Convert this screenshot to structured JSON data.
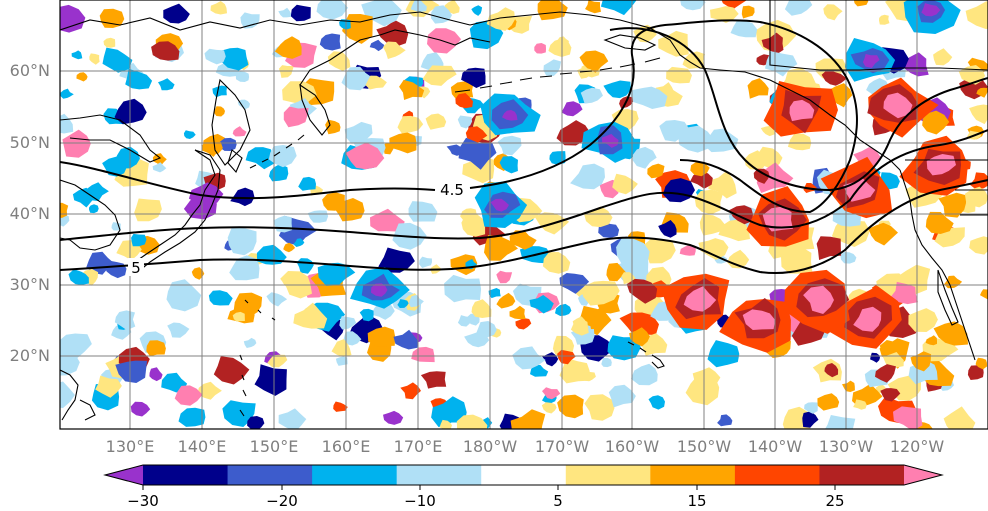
{
  "map": {
    "lat_labels": [
      "60°N",
      "50°N",
      "40°N",
      "30°N",
      "20°N"
    ],
    "lon_labels": [
      "130°E",
      "140°E",
      "150°E",
      "160°E",
      "170°E",
      "180°W",
      "170°W",
      "160°W",
      "150°W",
      "140°W",
      "130°W",
      "120°W"
    ],
    "contour_labels": [
      "4.5",
      "5"
    ]
  },
  "colorbar": {
    "tick_labels": [
      "−30",
      "−20",
      "−10",
      "5",
      "15",
      "25"
    ],
    "colors": [
      "#9932cc",
      "#00008b",
      "#3d5ccc",
      "#00b2ee",
      "#b0e0f6",
      "#ffffff",
      "#ffe680",
      "#ffa500",
      "#ff4500",
      "#b22222",
      "#ff7fb0"
    ]
  }
}
